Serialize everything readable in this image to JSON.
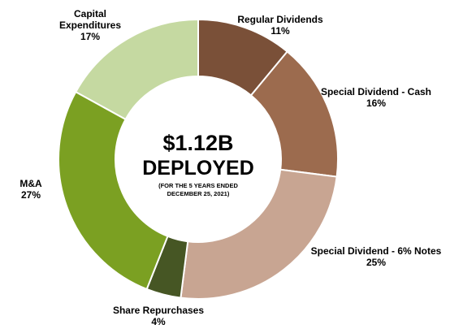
{
  "chart_data": {
    "type": "pie",
    "title": "",
    "center_text": {
      "amount": "$1.12B",
      "headline": "DEPLOYED",
      "note_line1": "(FOR THE 5 YEARS ENDED",
      "note_line2": "DECEMBER 25, 2021)"
    },
    "slices": [
      {
        "label_lines": [
          "Regular Dividends"
        ],
        "value_label": "11%",
        "value": 11,
        "color": "#7a5038"
      },
      {
        "label_lines": [
          "Special Dividend - Cash"
        ],
        "value_label": "16%",
        "value": 16,
        "color": "#9c6b4e"
      },
      {
        "label_lines": [
          "Special Dividend - 6% Notes"
        ],
        "value_label": "25%",
        "value": 25,
        "color": "#c8a592"
      },
      {
        "label_lines": [
          "Share Repurchases"
        ],
        "value_label": "4%",
        "value": 4,
        "color": "#465624"
      },
      {
        "label_lines": [
          "M&A"
        ],
        "value_label": "27%",
        "value": 27,
        "color": "#7ba022"
      },
      {
        "label_lines": [
          "Capital",
          "Expenditures"
        ],
        "value_label": "17%",
        "value": 17,
        "color": "#c5d9a1"
      }
    ]
  }
}
